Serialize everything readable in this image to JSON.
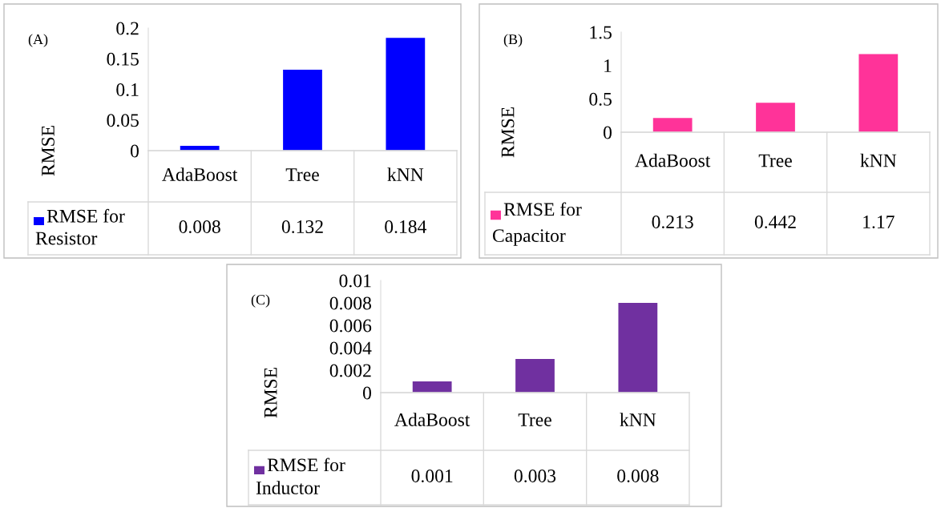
{
  "chart_data": [
    {
      "type": "bar",
      "title": "(A)",
      "ylabel": "RMSE",
      "categories": [
        "AdaBoost",
        "Tree",
        "kNN"
      ],
      "series": [
        {
          "name": "RMSE for Resistor",
          "color": "#0000ff",
          "values": [
            0.008,
            0.132,
            0.184
          ]
        }
      ],
      "ylim": [
        0,
        0.2
      ],
      "yticks": [
        0,
        0.05,
        0.1,
        0.15,
        0.2
      ],
      "data_labels": true,
      "legend": "bottom",
      "grid": false
    },
    {
      "type": "bar",
      "title": "(B)",
      "ylabel": "RMSE",
      "categories": [
        "AdaBoost",
        "Tree",
        "kNN"
      ],
      "series": [
        {
          "name": "RMSE for Capacitor",
          "color": "#ff3399",
          "values": [
            0.213,
            0.442,
            1.17
          ]
        }
      ],
      "ylim": [
        0,
        1.5
      ],
      "yticks": [
        0,
        0.5,
        1,
        1.5
      ],
      "data_labels": true,
      "legend": "bottom",
      "grid": false
    },
    {
      "type": "bar",
      "title": "(C)",
      "ylabel": "RMSE",
      "categories": [
        "AdaBoost",
        "Tree",
        "kNN"
      ],
      "series": [
        {
          "name": "RMSE for Inductor",
          "color": "#7030a0",
          "values": [
            0.001,
            0.003,
            0.008
          ]
        }
      ],
      "ylim": [
        0,
        0.01
      ],
      "yticks": [
        0,
        0.002,
        0.004,
        0.006,
        0.008,
        0.01
      ],
      "data_labels": true,
      "legend": "bottom",
      "grid": false
    }
  ]
}
